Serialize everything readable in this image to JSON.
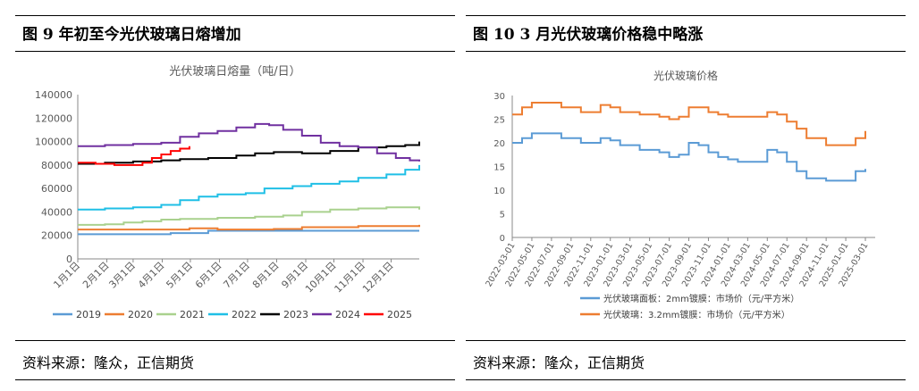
{
  "figures": [
    {
      "title": "图 9  年初至今光伏玻璃日熔增加",
      "source": "资料来源：隆众，正信期货"
    },
    {
      "title": "图 10   3 月光伏玻璃价格稳中略涨",
      "source": "资料来源：隆众，正信期货"
    }
  ],
  "chart_data": [
    {
      "type": "line",
      "title": "光伏玻璃日熔量（吨/日）",
      "x_label_ticks": [
        "1月1日",
        "2月1日",
        "3月1日",
        "4月1日",
        "5月1日",
        "6月1日",
        "7月1日",
        "8月1日",
        "9月1日",
        "10月1日",
        "11月1日",
        "12月1日"
      ],
      "x_unit": "day of year",
      "xlim": [
        1,
        365
      ],
      "ylim": [
        0,
        140000
      ],
      "y_ticks": [
        "0",
        "20000",
        "40000",
        "60000",
        "80000",
        "100000",
        "120000",
        "140000"
      ],
      "grid": false,
      "legend_position": "bottom",
      "series": [
        {
          "name": "2019",
          "color": "#5b9bd5",
          "x": [
            1,
            90,
            100,
            140,
            365
          ],
          "y": [
            21000,
            21000,
            22000,
            24000,
            24000
          ]
        },
        {
          "name": "2020",
          "color": "#ed7d31",
          "x": [
            1,
            120,
            150,
            210,
            240,
            300,
            365
          ],
          "y": [
            25000,
            26000,
            25000,
            25500,
            27000,
            28000,
            29000
          ]
        },
        {
          "name": "2021",
          "color": "#a9d18e",
          "x": [
            1,
            30,
            50,
            70,
            90,
            110,
            150,
            190,
            220,
            240,
            270,
            300,
            330,
            365
          ],
          "y": [
            29000,
            29500,
            31000,
            32000,
            33500,
            34000,
            35000,
            36000,
            37000,
            40000,
            42000,
            43000,
            44000,
            42000
          ]
        },
        {
          "name": "2022",
          "color": "#1fbfe6",
          "x": [
            1,
            30,
            60,
            90,
            110,
            130,
            150,
            180,
            200,
            230,
            250,
            280,
            300,
            330,
            350,
            365
          ],
          "y": [
            42000,
            43000,
            44000,
            46000,
            50000,
            53000,
            55000,
            56000,
            60000,
            62000,
            64000,
            66000,
            69000,
            72000,
            76000,
            80000
          ]
        },
        {
          "name": "2023",
          "color": "#000000",
          "x": [
            1,
            30,
            60,
            90,
            110,
            140,
            170,
            190,
            210,
            240,
            270,
            300,
            330,
            350,
            365
          ],
          "y": [
            81000,
            82000,
            83000,
            84000,
            85000,
            86000,
            88000,
            90000,
            91000,
            90000,
            92000,
            95000,
            96000,
            97000,
            100000
          ]
        },
        {
          "name": "2024",
          "color": "#7030a0",
          "x": [
            1,
            30,
            60,
            90,
            110,
            130,
            150,
            170,
            190,
            205,
            220,
            240,
            260,
            280,
            300,
            320,
            340,
            355,
            365
          ],
          "y": [
            96000,
            97000,
            98000,
            99000,
            104000,
            107000,
            109000,
            112000,
            115000,
            114000,
            110000,
            105000,
            99000,
            96000,
            95000,
            90000,
            86000,
            84000,
            83000
          ]
        },
        {
          "name": "2025",
          "color": "#ff0000",
          "x": [
            1,
            20,
            40,
            60,
            70,
            80,
            90,
            100,
            110,
            120
          ],
          "y": [
            82000,
            81000,
            80000,
            80000,
            82000,
            86000,
            89000,
            92000,
            94000,
            96000
          ]
        }
      ]
    },
    {
      "type": "line",
      "title": "光伏玻璃价格",
      "ylim": [
        0,
        30
      ],
      "y_ticks": [
        "0",
        "5",
        "10",
        "15",
        "20",
        "25",
        "30"
      ],
      "x_ticks": [
        "2022-03-01",
        "2022-05-01",
        "2022-07-01",
        "2022-09-01",
        "2022-11-01",
        "2023-01-01",
        "2023-03-01",
        "2023-05-01",
        "2023-07-01",
        "2023-09-01",
        "2023-11-01",
        "2024-01-01",
        "2024-03-01",
        "2024-05-01",
        "2024-07-01",
        "2024-09-01",
        "2024-11-01",
        "2025-01-01",
        "2025-03-01"
      ],
      "grid": false,
      "legend_position": "bottom",
      "series": [
        {
          "name": "光伏玻璃面板：2mm镀膜：市场价（元/平方米）",
          "color": "#5b9bd5",
          "x": [
            "2022-03-01",
            "2022-04-01",
            "2022-05-01",
            "2022-06-01",
            "2022-08-01",
            "2022-10-01",
            "2022-12-01",
            "2023-01-01",
            "2023-02-01",
            "2023-04-01",
            "2023-06-01",
            "2023-07-01",
            "2023-08-01",
            "2023-09-01",
            "2023-10-01",
            "2023-11-01",
            "2023-12-01",
            "2024-01-01",
            "2024-02-01",
            "2024-04-01",
            "2024-05-01",
            "2024-06-01",
            "2024-07-01",
            "2024-08-01",
            "2024-09-01",
            "2024-10-01",
            "2024-11-01",
            "2024-12-01",
            "2025-01-01",
            "2025-02-01",
            "2025-03-01"
          ],
          "y": [
            20,
            21,
            22,
            22,
            21,
            20,
            21,
            20.5,
            19.5,
            18.5,
            18,
            17,
            17.5,
            20,
            19.5,
            18,
            17,
            16.5,
            16,
            16,
            18.5,
            18,
            16,
            14,
            12.5,
            12.5,
            12,
            12,
            12,
            14,
            14.5
          ]
        },
        {
          "name": "光伏玻璃：3.2mm镀膜：市场价（元/平方米）",
          "color": "#ed7d31",
          "x": [
            "2022-03-01",
            "2022-04-01",
            "2022-05-01",
            "2022-06-01",
            "2022-08-01",
            "2022-10-01",
            "2022-12-01",
            "2023-01-01",
            "2023-02-01",
            "2023-04-01",
            "2023-06-01",
            "2023-07-01",
            "2023-08-01",
            "2023-09-01",
            "2023-10-01",
            "2023-11-01",
            "2023-12-01",
            "2024-01-01",
            "2024-02-01",
            "2024-04-01",
            "2024-05-01",
            "2024-06-01",
            "2024-07-01",
            "2024-08-01",
            "2024-09-01",
            "2024-10-01",
            "2024-11-01",
            "2024-12-01",
            "2025-01-01",
            "2025-02-01",
            "2025-03-01"
          ],
          "y": [
            26,
            27.5,
            28.5,
            28.5,
            27.5,
            26.5,
            28,
            27.5,
            26.5,
            26,
            25.5,
            25,
            25.5,
            27.5,
            27.5,
            26.5,
            26,
            25.5,
            25.5,
            25.5,
            26.5,
            26,
            24.5,
            23,
            21,
            21,
            19.5,
            19.5,
            19.5,
            21,
            22.5
          ]
        }
      ]
    }
  ]
}
